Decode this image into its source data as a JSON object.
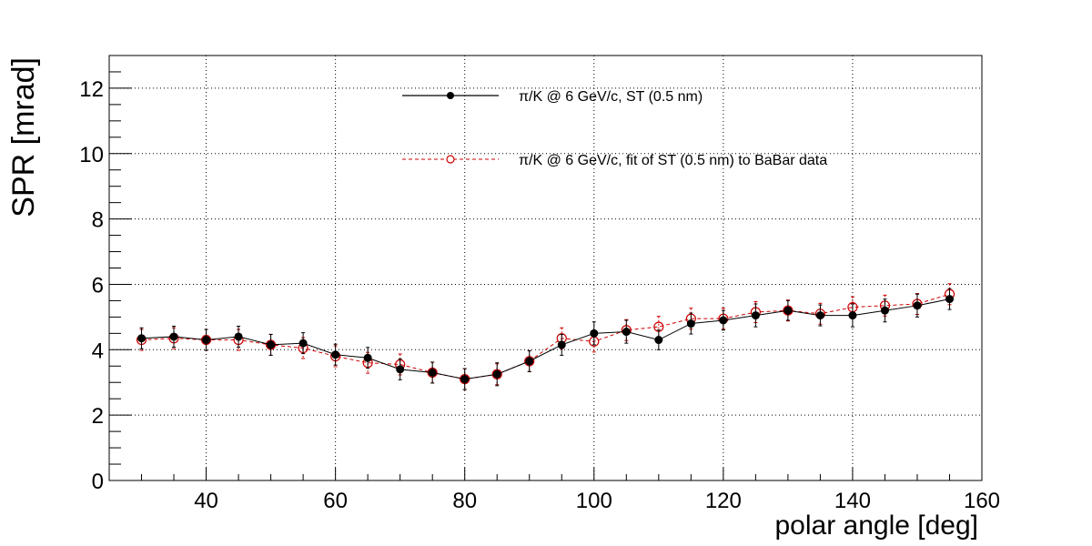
{
  "chart_data": {
    "type": "scatter",
    "title": "",
    "xlabel": "polar angle [deg]",
    "ylabel": "SPR [mrad]",
    "xlim": [
      25,
      160
    ],
    "ylim": [
      0,
      13
    ],
    "x_ticks": [
      40,
      60,
      80,
      100,
      120,
      140,
      160
    ],
    "y_ticks": [
      0,
      2,
      4,
      6,
      8,
      10,
      12
    ],
    "grid": true,
    "legend_position": "top-center",
    "series": [
      {
        "name": "π/K @ 6 GeV/c, ST (0.5 nm)",
        "color": "#000000",
        "marker": "filled-circle",
        "line": "solid",
        "x": [
          30,
          35,
          40,
          45,
          50,
          55,
          60,
          65,
          70,
          75,
          80,
          85,
          90,
          95,
          100,
          105,
          110,
          115,
          120,
          125,
          130,
          135,
          140,
          145,
          150,
          155
        ],
        "y": [
          4.35,
          4.4,
          4.3,
          4.4,
          4.15,
          4.2,
          3.85,
          3.75,
          3.4,
          3.3,
          3.1,
          3.25,
          3.65,
          4.15,
          4.5,
          4.55,
          4.3,
          4.8,
          4.9,
          5.05,
          5.2,
          5.05,
          5.05,
          5.2,
          5.35,
          5.55
        ],
        "err": [
          0.32,
          0.32,
          0.32,
          0.32,
          0.32,
          0.32,
          0.32,
          0.32,
          0.32,
          0.32,
          0.32,
          0.35,
          0.32,
          0.32,
          0.35,
          0.35,
          0.3,
          0.32,
          0.3,
          0.35,
          0.3,
          0.32,
          0.35,
          0.35,
          0.35,
          0.32
        ]
      },
      {
        "name": "π/K @ 6 GeV/c, fit of ST (0.5 nm) to BaBar data",
        "color": "#cc0000",
        "marker": "open-circle",
        "line": "dashed",
        "x": [
          30,
          35,
          40,
          45,
          50,
          55,
          60,
          65,
          70,
          75,
          80,
          85,
          90,
          95,
          100,
          105,
          110,
          115,
          120,
          125,
          130,
          135,
          140,
          145,
          150,
          155
        ],
        "y": [
          4.3,
          4.35,
          4.3,
          4.3,
          4.15,
          4.05,
          3.8,
          3.6,
          3.55,
          3.3,
          3.1,
          3.25,
          3.65,
          4.35,
          4.25,
          4.6,
          4.7,
          4.95,
          4.95,
          5.15,
          5.2,
          5.1,
          5.3,
          5.35,
          5.4,
          5.7
        ],
        "err": [
          0.32,
          0.32,
          0.32,
          0.32,
          0.32,
          0.32,
          0.32,
          0.32,
          0.32,
          0.32,
          0.32,
          0.32,
          0.32,
          0.32,
          0.32,
          0.32,
          0.32,
          0.32,
          0.32,
          0.32,
          0.32,
          0.32,
          0.32,
          0.32,
          0.32,
          0.32
        ]
      }
    ]
  }
}
